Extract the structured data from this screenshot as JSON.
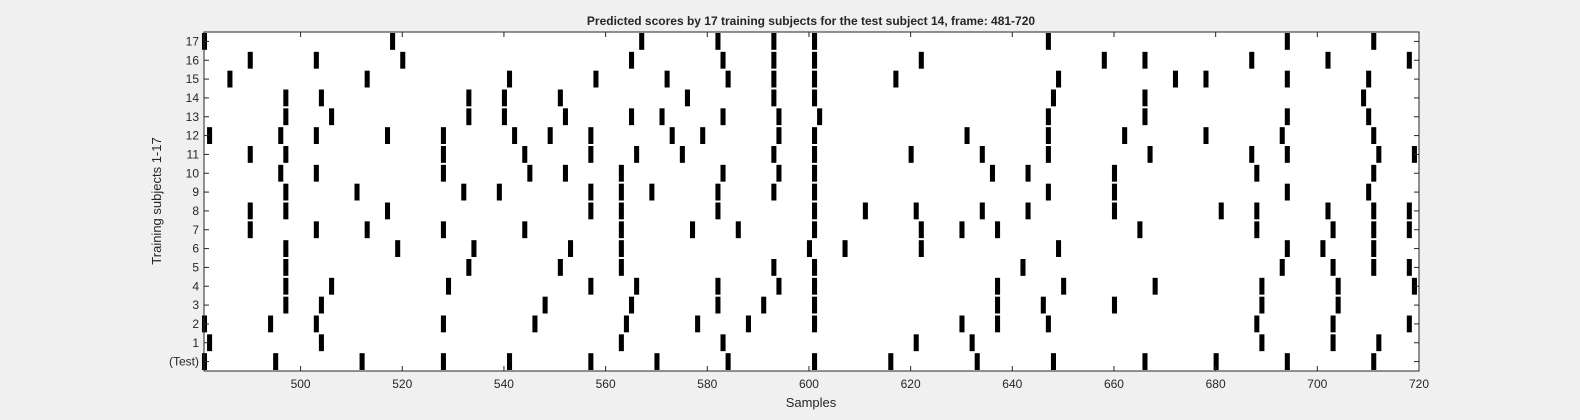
{
  "chart_data": {
    "type": "raster",
    "title": "Predicted scores by 17 training subjects for the test subject 14, frame: 481-720",
    "xlabel": "Samples",
    "ylabel": "Training subjects 1-17",
    "xlim": [
      481,
      720
    ],
    "x_ticks": [
      500,
      520,
      540,
      560,
      580,
      600,
      620,
      640,
      660,
      680,
      700,
      720
    ],
    "y_ticks": [
      "(Test)",
      "1",
      "2",
      "3",
      "4",
      "5",
      "6",
      "7",
      "8",
      "9",
      "10",
      "11",
      "12",
      "13",
      "14",
      "15",
      "16",
      "17"
    ],
    "grid": false,
    "rows": [
      {
        "label": "(Test)",
        "events": [
          481,
          495,
          512,
          528,
          541,
          557,
          570,
          584,
          601,
          616,
          633,
          648,
          666,
          680,
          694,
          711
        ]
      },
      {
        "label": "1",
        "events": [
          482,
          504,
          563,
          583,
          621,
          632,
          689,
          703,
          712
        ]
      },
      {
        "label": "2",
        "events": [
          481,
          494,
          503,
          528,
          546,
          564,
          578,
          588,
          601,
          630,
          637,
          647,
          688,
          703,
          718
        ]
      },
      {
        "label": "3",
        "events": [
          497,
          504,
          548,
          565,
          582,
          591,
          601,
          637,
          646,
          660,
          689,
          704
        ]
      },
      {
        "label": "4",
        "events": [
          497,
          506,
          529,
          557,
          566,
          582,
          594,
          601,
          637,
          650,
          668,
          689,
          704,
          719
        ]
      },
      {
        "label": "5",
        "events": [
          497,
          533,
          551,
          563,
          593,
          601,
          642,
          693,
          703,
          711,
          718
        ]
      },
      {
        "label": "6",
        "events": [
          497,
          519,
          534,
          553,
          563,
          600,
          607,
          622,
          649,
          694,
          701,
          711
        ]
      },
      {
        "label": "7",
        "events": [
          490,
          503,
          513,
          528,
          544,
          563,
          577,
          586,
          601,
          622,
          630,
          637,
          665,
          688,
          703,
          711,
          718
        ]
      },
      {
        "label": "8",
        "events": [
          490,
          497,
          517,
          557,
          563,
          582,
          601,
          611,
          621,
          634,
          643,
          660,
          681,
          688,
          702,
          711,
          718
        ]
      },
      {
        "label": "9",
        "events": [
          497,
          511,
          532,
          539,
          557,
          563,
          569,
          582,
          593,
          601,
          647,
          660,
          694,
          710
        ]
      },
      {
        "label": "10",
        "events": [
          496,
          503,
          528,
          545,
          552,
          563,
          583,
          594,
          601,
          636,
          643,
          660,
          688,
          711
        ]
      },
      {
        "label": "11",
        "events": [
          490,
          497,
          528,
          544,
          557,
          566,
          575,
          593,
          601,
          620,
          634,
          647,
          667,
          687,
          694,
          712,
          719
        ]
      },
      {
        "label": "12",
        "events": [
          482,
          496,
          503,
          517,
          528,
          542,
          549,
          557,
          573,
          579,
          594,
          601,
          631,
          647,
          662,
          678,
          693,
          711
        ]
      },
      {
        "label": "13",
        "events": [
          497,
          506,
          533,
          540,
          552,
          565,
          571,
          583,
          594,
          602,
          647,
          666,
          694,
          710
        ]
      },
      {
        "label": "14",
        "events": [
          497,
          504,
          533,
          540,
          551,
          576,
          593,
          601,
          648,
          666,
          709
        ]
      },
      {
        "label": "15",
        "events": [
          486,
          513,
          541,
          558,
          572,
          584,
          593,
          601,
          617,
          649,
          672,
          678,
          694,
          710
        ]
      },
      {
        "label": "16",
        "events": [
          490,
          503,
          520,
          565,
          583,
          593,
          601,
          622,
          658,
          666,
          687,
          702,
          718
        ]
      },
      {
        "label": "17",
        "events": [
          481,
          518,
          567,
          582,
          593,
          601,
          647,
          694,
          711
        ]
      }
    ]
  }
}
